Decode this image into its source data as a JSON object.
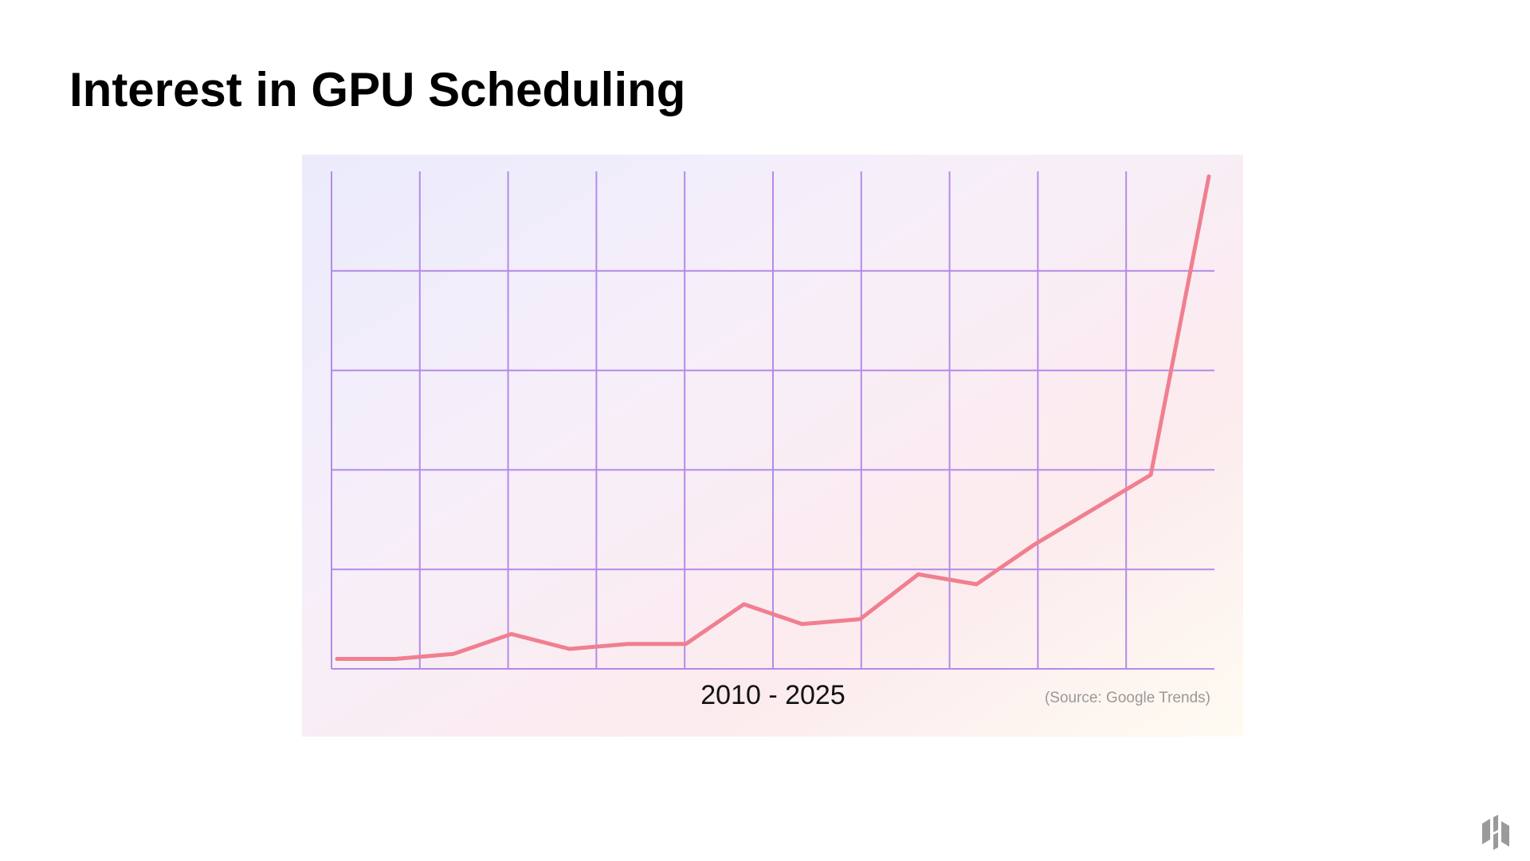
{
  "title": "Interest in GPU Scheduling",
  "chart_data": {
    "type": "line",
    "x_label": "2010 - 2025",
    "source": "(Source: Google Trends)",
    "values": [
      2,
      2,
      3,
      7,
      4,
      5,
      5,
      13,
      9,
      10,
      19,
      17,
      25,
      32,
      39,
      99
    ],
    "color": "#f07f8f",
    "ylim": [
      0,
      100
    ],
    "yticks": [
      0,
      20,
      40,
      60,
      80
    ],
    "grid": true
  }
}
